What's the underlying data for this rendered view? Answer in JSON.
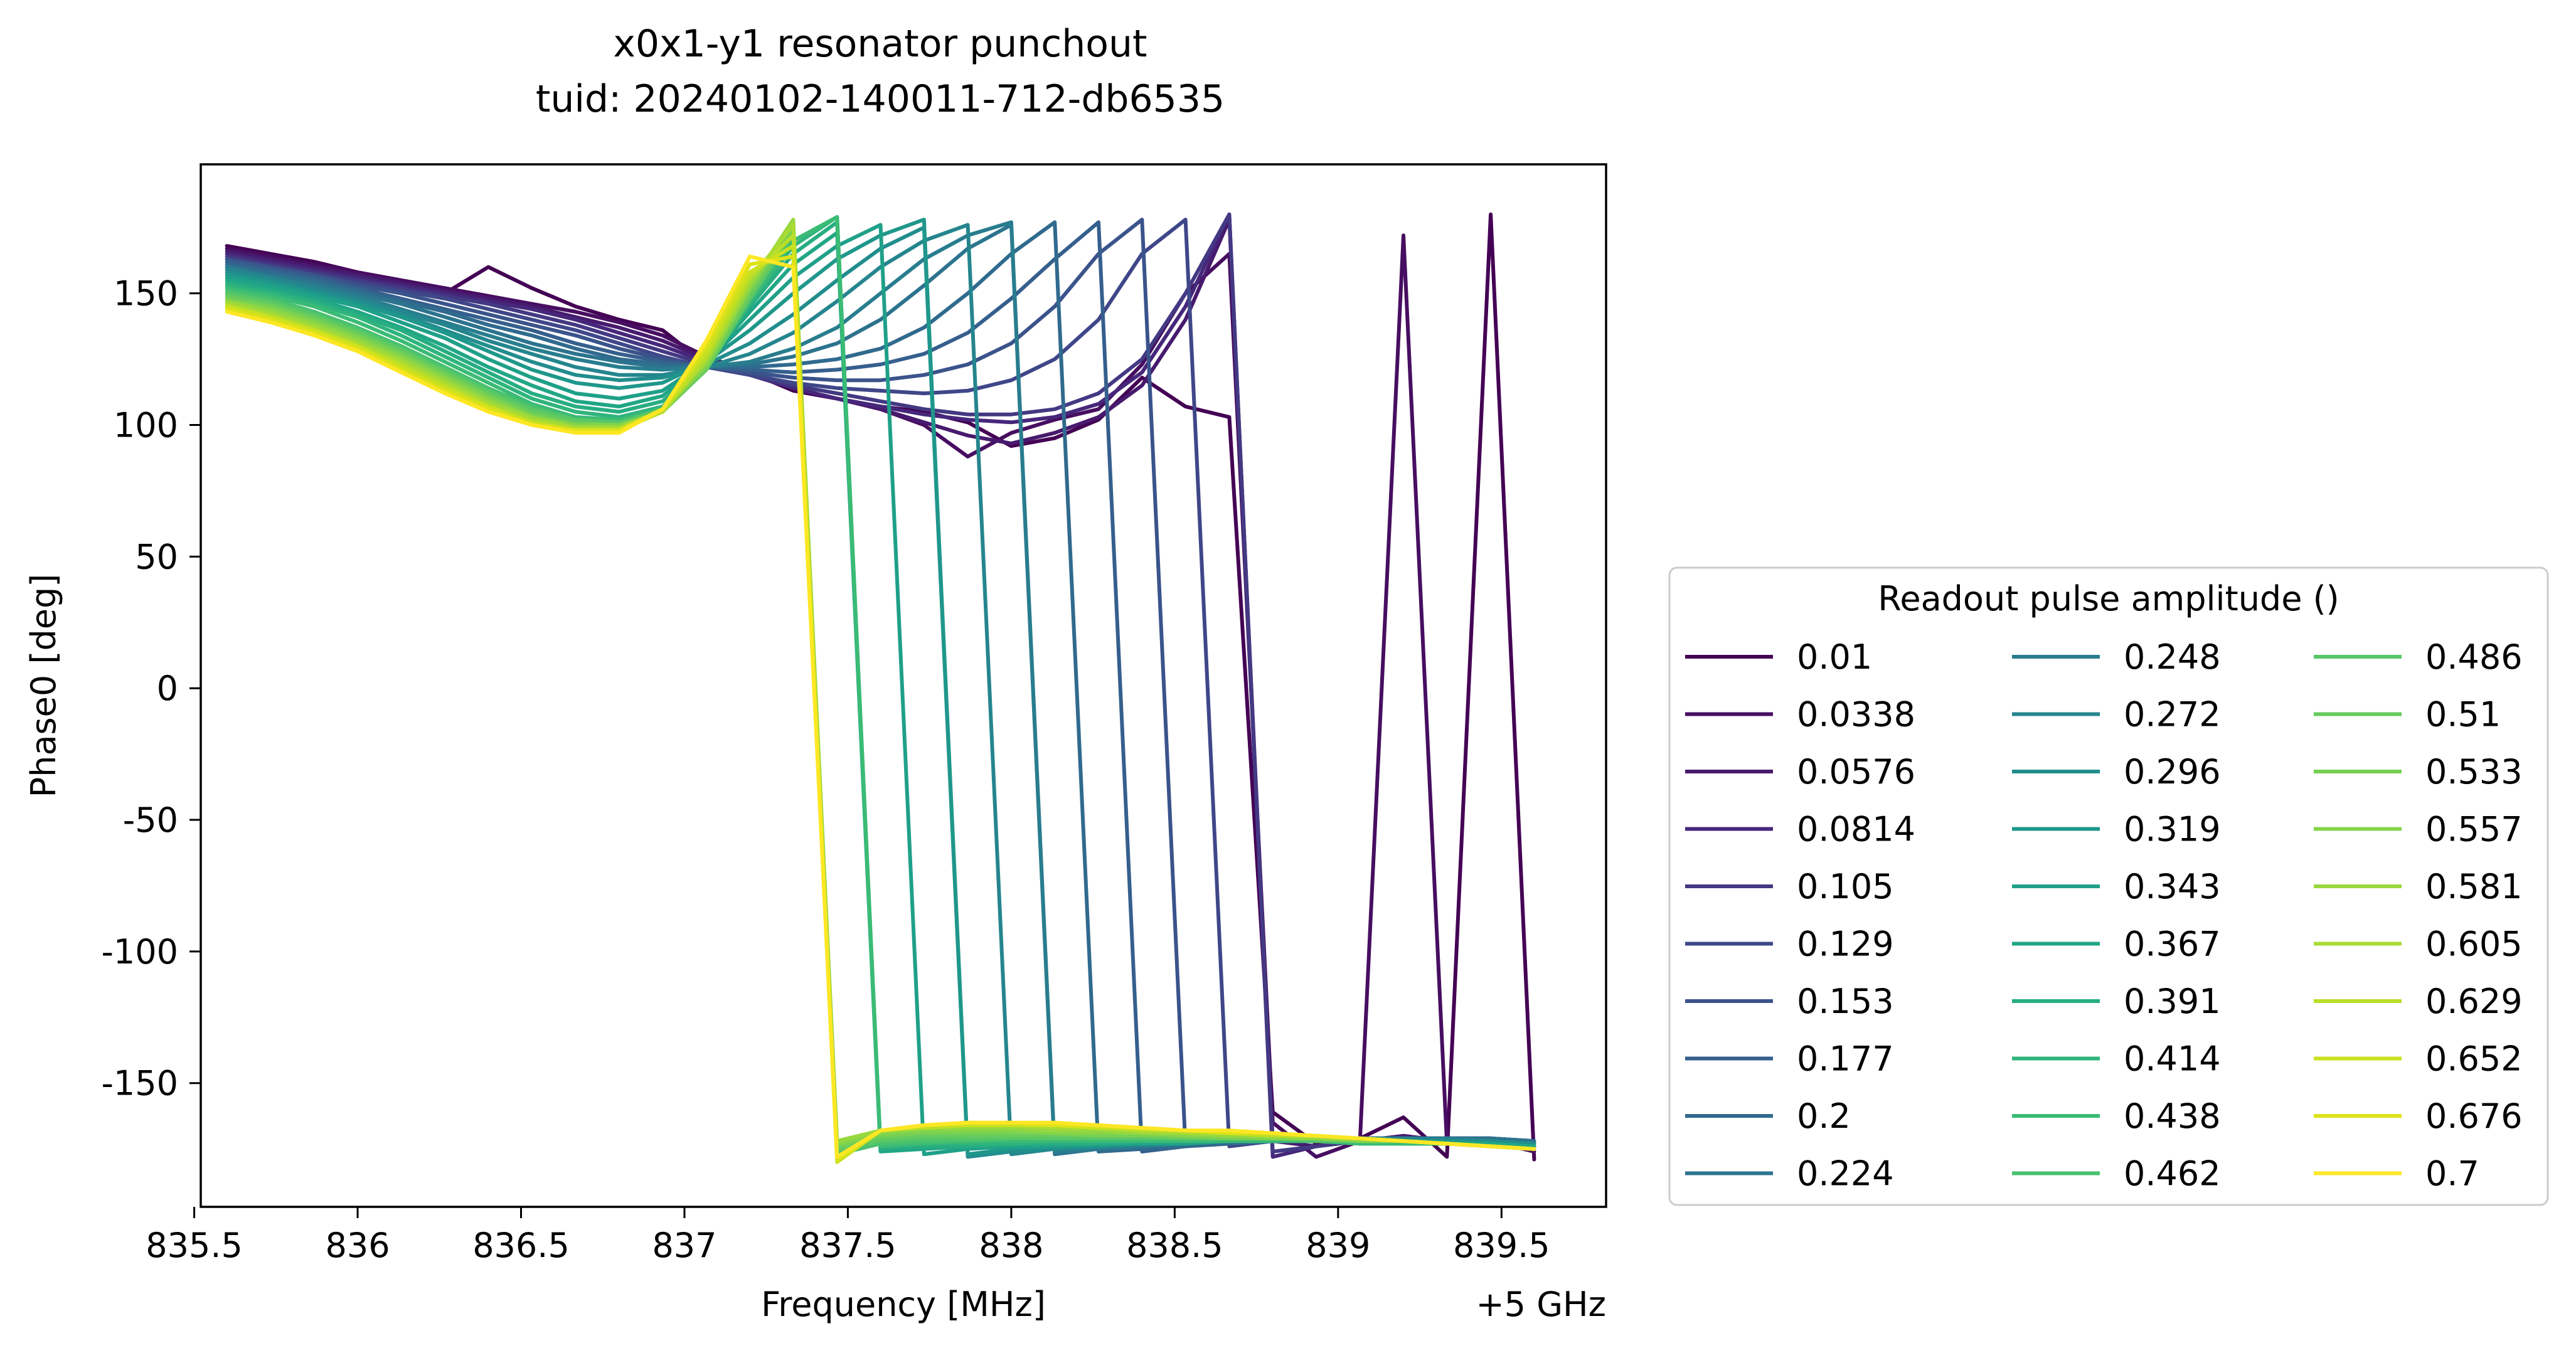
{
  "chart_data": {
    "type": "line",
    "title": "x0x1-y1 resonator punchout",
    "subtitle": "tuid: 20240102-140011-712-db6535",
    "xlabel": "Frequency [MHz]",
    "ylabel": "Phase0 [deg]",
    "x_offset_label": "+5 GHz",
    "xlim": [
      835.52,
      839.82
    ],
    "ylim": [
      -197,
      199
    ],
    "xticks": [
      835.5,
      836,
      836.5,
      837,
      837.5,
      838,
      838.5,
      839,
      839.5
    ],
    "xtick_labels": [
      "835.5",
      "836",
      "836.5",
      "837",
      "837.5",
      "838",
      "838.5",
      "839",
      "839.5"
    ],
    "yticks": [
      150,
      100,
      50,
      0,
      -50,
      -100,
      -150
    ],
    "ytick_labels": [
      "150",
      "100",
      "50",
      "0",
      "-50",
      "-100",
      "-150"
    ],
    "grid": false,
    "legend": {
      "title": "Readout pulse amplitude ()",
      "placement": "outside-right-lower",
      "columns": 3
    },
    "x": [
      835.6,
      835.733,
      835.867,
      836.0,
      836.133,
      836.267,
      836.4,
      836.533,
      836.667,
      836.8,
      836.933,
      837.067,
      837.2,
      837.333,
      837.467,
      837.6,
      837.733,
      837.867,
      838.0,
      838.133,
      838.267,
      838.4,
      838.533,
      838.667,
      838.8,
      838.933,
      839.067,
      839.2,
      839.333,
      839.467,
      839.6
    ],
    "series": [
      {
        "name": "0.01",
        "color": "#440154",
        "values": [
          168,
          165,
          162,
          158,
          154,
          150,
          160,
          152,
          145,
          140,
          136,
          123,
          120,
          113,
          110,
          107,
          105,
          101,
          92,
          95,
          102,
          118,
          107,
          103,
          -161,
          -173,
          -171,
          -163,
          -178,
          180,
          -179
        ]
      },
      {
        "name": "0.0338",
        "color": "#470e61",
        "values": [
          167,
          164,
          161,
          158,
          155,
          152,
          149,
          146,
          143,
          139,
          134,
          126,
          120,
          114,
          110,
          106,
          100,
          88,
          97,
          102,
          106,
          123,
          150,
          165,
          -165,
          -178,
          -172,
          172,
          -173,
          -172,
          -176
        ]
      },
      {
        "name": "0.0576",
        "color": "#471a6e",
        "values": [
          166,
          163,
          160,
          157,
          154,
          151,
          148,
          145,
          141,
          137,
          132,
          125,
          120,
          114,
          110,
          106,
          101,
          96,
          93,
          97,
          103,
          115,
          140,
          178,
          -172,
          -174,
          -172,
          -170,
          -172,
          -172,
          -174
        ]
      },
      {
        "name": "0.0814",
        "color": "#46277b",
        "values": [
          165,
          162,
          159,
          156,
          153,
          150,
          147,
          144,
          140,
          135,
          130,
          124,
          119,
          114,
          110,
          107,
          104,
          102,
          101,
          103,
          108,
          120,
          145,
          180,
          -178,
          -174,
          -172,
          -171,
          -171,
          -171,
          -173
        ]
      },
      {
        "name": "0.105",
        "color": "#433983",
        "values": [
          164,
          161,
          158,
          155,
          152,
          149,
          146,
          142,
          138,
          133,
          128,
          123,
          119,
          115,
          112,
          109,
          106,
          104,
          104,
          106,
          112,
          125,
          150,
          180,
          -176,
          -174,
          -172,
          -171,
          -171,
          -171,
          -173
        ]
      },
      {
        "name": "0.129",
        "color": "#3f4789",
        "values": [
          163,
          160,
          157,
          154,
          151,
          148,
          144,
          140,
          136,
          131,
          126,
          122,
          119,
          116,
          114,
          113,
          112,
          113,
          117,
          125,
          140,
          165,
          178,
          -174,
          -172,
          -172,
          -171,
          -171,
          -171,
          -171,
          -172
        ]
      },
      {
        "name": "0.153",
        "color": "#3a538b",
        "values": [
          163,
          160,
          157,
          153,
          150,
          146,
          142,
          138,
          134,
          129,
          125,
          122,
          120,
          118,
          117,
          117,
          119,
          123,
          131,
          145,
          165,
          178,
          -174,
          -172,
          -172,
          -171,
          -171,
          -171,
          -171,
          -171,
          -172
        ]
      },
      {
        "name": "0.177",
        "color": "#355f8d",
        "values": [
          162,
          159,
          156,
          152,
          148,
          144,
          140,
          136,
          131,
          127,
          124,
          122,
          121,
          120,
          121,
          123,
          127,
          135,
          148,
          163,
          177,
          -176,
          -174,
          -173,
          -172,
          -171,
          -171,
          -171,
          -171,
          -171,
          -172
        ]
      },
      {
        "name": "0.2",
        "color": "#306a8e",
        "values": [
          161,
          158,
          155,
          151,
          147,
          143,
          138,
          134,
          129,
          125,
          123,
          122,
          122,
          123,
          125,
          129,
          137,
          150,
          165,
          177,
          -176,
          -175,
          -174,
          -173,
          -172,
          -171,
          -171,
          -171,
          -171,
          -171,
          -172
        ]
      },
      {
        "name": "0.224",
        "color": "#2c738e",
        "values": [
          160,
          157,
          154,
          150,
          146,
          141,
          136,
          131,
          127,
          124,
          122,
          122,
          123,
          126,
          131,
          140,
          153,
          167,
          176,
          -177,
          -175,
          -174,
          -173,
          -172,
          -172,
          -171,
          -171,
          -171,
          -171,
          -171,
          -172
        ]
      },
      {
        "name": "0.248",
        "color": "#287d8e",
        "values": [
          160,
          156,
          153,
          149,
          144,
          139,
          134,
          129,
          125,
          122,
          121,
          122,
          124,
          129,
          137,
          150,
          163,
          172,
          177,
          -176,
          -175,
          -174,
          -173,
          -172,
          -172,
          -171,
          -171,
          -171,
          -171,
          -172,
          -173
        ]
      },
      {
        "name": "0.272",
        "color": "#25858e",
        "values": [
          159,
          156,
          152,
          148,
          143,
          138,
          132,
          127,
          122,
          119,
          119,
          122,
          127,
          135,
          147,
          160,
          170,
          176,
          -177,
          -175,
          -174,
          -173,
          -173,
          -172,
          -172,
          -171,
          -171,
          -171,
          -172,
          -172,
          -173
        ]
      },
      {
        "name": "0.296",
        "color": "#228d8d",
        "values": [
          158,
          155,
          151,
          147,
          142,
          136,
          130,
          124,
          119,
          117,
          118,
          123,
          131,
          142,
          155,
          167,
          175,
          -178,
          -176,
          -175,
          -174,
          -173,
          -173,
          -172,
          -172,
          -172,
          -172,
          -172,
          -172,
          -172,
          -173
        ]
      },
      {
        "name": "0.319",
        "color": "#1f978b",
        "values": [
          157,
          154,
          150,
          146,
          141,
          135,
          128,
          121,
          116,
          114,
          116,
          124,
          136,
          150,
          163,
          172,
          178,
          -177,
          -175,
          -174,
          -174,
          -173,
          -173,
          -172,
          -172,
          -172,
          -172,
          -172,
          -172,
          -173,
          -174
        ]
      },
      {
        "name": "0.343",
        "color": "#1fa088",
        "values": [
          156,
          153,
          149,
          145,
          139,
          133,
          125,
          118,
          112,
          110,
          113,
          124,
          140,
          156,
          168,
          176,
          -177,
          -175,
          -174,
          -174,
          -173,
          -173,
          -173,
          -172,
          -172,
          -172,
          -172,
          -172,
          -173,
          -173,
          -174
        ]
      },
      {
        "name": "0.367",
        "color": "#21a685",
        "values": [
          155,
          152,
          148,
          143,
          137,
          130,
          122,
          115,
          109,
          107,
          111,
          124,
          143,
          161,
          173,
          -176,
          -175,
          -174,
          -174,
          -173,
          -173,
          -173,
          -172,
          -172,
          -172,
          -172,
          -172,
          -173,
          -173,
          -173,
          -174
        ]
      },
      {
        "name": "0.391",
        "color": "#27ad81",
        "values": [
          154,
          151,
          147,
          142,
          136,
          128,
          120,
          112,
          107,
          105,
          109,
          123,
          145,
          165,
          177,
          -175,
          -174,
          -174,
          -173,
          -173,
          -173,
          -172,
          -172,
          -172,
          -172,
          -172,
          -173,
          -173,
          -173,
          -174,
          -175
        ]
      },
      {
        "name": "0.414",
        "color": "#2fb47c",
        "values": [
          153,
          150,
          146,
          141,
          134,
          126,
          118,
          110,
          105,
          103,
          107,
          122,
          146,
          168,
          179,
          -174,
          -173,
          -173,
          -173,
          -172,
          -172,
          -172,
          -172,
          -172,
          -172,
          -172,
          -173,
          -173,
          -173,
          -174,
          -175
        ]
      },
      {
        "name": "0.438",
        "color": "#3bbb75",
        "values": [
          152,
          149,
          145,
          139,
          132,
          124,
          116,
          108,
          103,
          102,
          106,
          121,
          147,
          170,
          179,
          -174,
          -173,
          -172,
          -172,
          -172,
          -172,
          -172,
          -172,
          -172,
          -172,
          -172,
          -173,
          -173,
          -173,
          -174,
          -175
        ]
      },
      {
        "name": "0.462",
        "color": "#48c16e",
        "values": [
          151,
          148,
          143,
          137,
          130,
          122,
          114,
          107,
          102,
          101,
          106,
          121,
          148,
          172,
          -177,
          -173,
          -172,
          -172,
          -171,
          -171,
          -171,
          -171,
          -171,
          -171,
          -171,
          -172,
          -172,
          -172,
          -173,
          -174,
          -175
        ]
      },
      {
        "name": "0.486",
        "color": "#56c667",
        "values": [
          150,
          147,
          142,
          136,
          129,
          121,
          113,
          106,
          102,
          101,
          106,
          121,
          148,
          173,
          -176,
          -172,
          -171,
          -171,
          -171,
          -171,
          -171,
          -171,
          -171,
          -171,
          -171,
          -172,
          -172,
          -172,
          -173,
          -174,
          -175
        ]
      },
      {
        "name": "0.51",
        "color": "#65cb5e",
        "values": [
          149,
          146,
          141,
          135,
          128,
          120,
          112,
          105,
          101,
          100,
          105,
          121,
          149,
          174,
          -175,
          -171,
          -170,
          -170,
          -170,
          -170,
          -170,
          -170,
          -171,
          -171,
          -171,
          -171,
          -172,
          -172,
          -173,
          -174,
          -175
        ]
      },
      {
        "name": "0.533",
        "color": "#75d054",
        "values": [
          148,
          145,
          140,
          134,
          127,
          119,
          111,
          104,
          100,
          100,
          105,
          122,
          151,
          175,
          -174,
          -170,
          -169,
          -169,
          -169,
          -169,
          -170,
          -170,
          -170,
          -171,
          -171,
          -171,
          -172,
          -172,
          -173,
          -174,
          -175
        ]
      },
      {
        "name": "0.557",
        "color": "#86d549",
        "values": [
          147,
          144,
          139,
          133,
          126,
          118,
          110,
          103,
          100,
          100,
          105,
          123,
          152,
          177,
          -173,
          -169,
          -168,
          -168,
          -168,
          -169,
          -169,
          -169,
          -170,
          -170,
          -171,
          -171,
          -172,
          -172,
          -173,
          -174,
          -175
        ]
      },
      {
        "name": "0.581",
        "color": "#98d83e",
        "values": [
          147,
          143,
          138,
          132,
          125,
          117,
          109,
          103,
          99,
          99,
          105,
          124,
          153,
          178,
          -172,
          -168,
          -167,
          -167,
          -167,
          -168,
          -168,
          -169,
          -169,
          -170,
          -170,
          -171,
          -171,
          -172,
          -173,
          -174,
          -175
        ]
      },
      {
        "name": "0.605",
        "color": "#a8db34",
        "values": [
          146,
          142,
          137,
          131,
          124,
          116,
          108,
          102,
          99,
          99,
          105,
          125,
          155,
          176,
          -178,
          -168,
          -167,
          -166,
          -166,
          -167,
          -167,
          -168,
          -169,
          -169,
          -170,
          -170,
          -171,
          -172,
          -173,
          -174,
          -175
        ]
      },
      {
        "name": "0.629",
        "color": "#bade28",
        "values": [
          145,
          141,
          136,
          130,
          123,
          115,
          107,
          101,
          98,
          98,
          105,
          126,
          156,
          172,
          -179,
          -168,
          -167,
          -166,
          -166,
          -166,
          -167,
          -168,
          -168,
          -169,
          -170,
          -170,
          -171,
          -172,
          -173,
          -174,
          -175
        ]
      },
      {
        "name": "0.652",
        "color": "#cae11f",
        "values": [
          145,
          141,
          136,
          130,
          122,
          114,
          107,
          101,
          98,
          98,
          106,
          128,
          158,
          168,
          -180,
          -168,
          -166,
          -166,
          -166,
          -166,
          -167,
          -167,
          -168,
          -169,
          -169,
          -170,
          -171,
          -172,
          -173,
          -174,
          -175
        ]
      },
      {
        "name": "0.676",
        "color": "#dde318",
        "values": [
          144,
          140,
          135,
          129,
          121,
          113,
          106,
          100,
          98,
          98,
          106,
          130,
          161,
          164,
          -179,
          -168,
          -166,
          -165,
          -165,
          -166,
          -166,
          -167,
          -168,
          -169,
          -169,
          -170,
          -171,
          -172,
          -173,
          -174,
          -175
        ]
      },
      {
        "name": "0.7",
        "color": "#fde725",
        "values": [
          143,
          139,
          134,
          128,
          120,
          112,
          105,
          100,
          97,
          97,
          106,
          132,
          164,
          160,
          -178,
          -168,
          -166,
          -165,
          -165,
          -165,
          -166,
          -167,
          -168,
          -168,
          -169,
          -170,
          -171,
          -172,
          -173,
          -174,
          -175
        ]
      }
    ]
  }
}
